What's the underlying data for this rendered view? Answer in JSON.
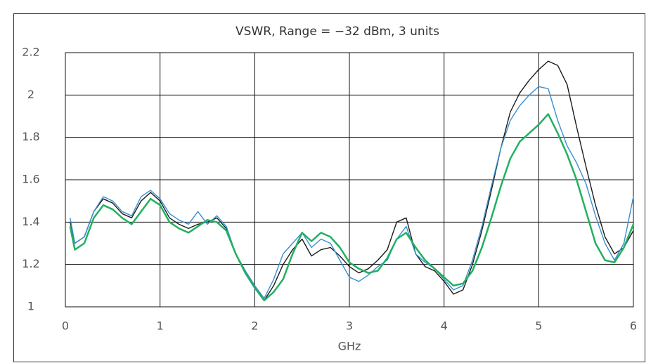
{
  "chart_data": {
    "type": "line",
    "title": "VSWR, Range = −32 dBm, 3 units",
    "xlabel": "GHz",
    "x": [
      0.05,
      0.1,
      0.2,
      0.3,
      0.4,
      0.5,
      0.6,
      0.7,
      0.8,
      0.9,
      1.0,
      1.1,
      1.2,
      1.3,
      1.4,
      1.5,
      1.6,
      1.7,
      1.8,
      1.9,
      2.0,
      2.1,
      2.2,
      2.3,
      2.4,
      2.5,
      2.6,
      2.7,
      2.8,
      2.9,
      3.0,
      3.1,
      3.2,
      3.3,
      3.4,
      3.5,
      3.6,
      3.7,
      3.8,
      3.9,
      4.0,
      4.1,
      4.2,
      4.3,
      4.4,
      4.5,
      4.6,
      4.7,
      4.8,
      4.9,
      5.0,
      5.1,
      5.2,
      5.3,
      5.4,
      5.5,
      5.6,
      5.7,
      5.8,
      5.9,
      6.0
    ],
    "series": [
      {
        "color": "#1a1a1a",
        "values": [
          1.4,
          1.3,
          1.33,
          1.45,
          1.51,
          1.49,
          1.44,
          1.42,
          1.5,
          1.54,
          1.5,
          1.42,
          1.39,
          1.37,
          1.39,
          1.4,
          1.42,
          1.37,
          1.25,
          1.17,
          1.1,
          1.03,
          1.1,
          1.2,
          1.27,
          1.32,
          1.24,
          1.27,
          1.28,
          1.24,
          1.19,
          1.16,
          1.18,
          1.22,
          1.27,
          1.4,
          1.42,
          1.25,
          1.19,
          1.17,
          1.12,
          1.06,
          1.08,
          1.2,
          1.36,
          1.55,
          1.75,
          1.92,
          2.01,
          2.07,
          2.12,
          2.16,
          2.14,
          2.05,
          1.85,
          1.66,
          1.48,
          1.33,
          1.25,
          1.28,
          1.36
        ]
      },
      {
        "color": "#3a8fd0",
        "values": [
          1.42,
          1.3,
          1.33,
          1.45,
          1.52,
          1.5,
          1.45,
          1.43,
          1.52,
          1.55,
          1.51,
          1.44,
          1.41,
          1.39,
          1.45,
          1.39,
          1.43,
          1.38,
          1.25,
          1.17,
          1.1,
          1.04,
          1.13,
          1.25,
          1.3,
          1.35,
          1.28,
          1.32,
          1.3,
          1.22,
          1.14,
          1.12,
          1.15,
          1.19,
          1.22,
          1.32,
          1.38,
          1.25,
          1.21,
          1.18,
          1.13,
          1.08,
          1.1,
          1.22,
          1.38,
          1.57,
          1.75,
          1.88,
          1.95,
          2.0,
          2.04,
          2.03,
          1.88,
          1.76,
          1.68,
          1.58,
          1.43,
          1.3,
          1.22,
          1.3,
          1.52
        ]
      },
      {
        "color": "#22b060",
        "values": [
          1.38,
          1.27,
          1.3,
          1.42,
          1.48,
          1.46,
          1.42,
          1.39,
          1.45,
          1.51,
          1.48,
          1.4,
          1.37,
          1.35,
          1.38,
          1.41,
          1.4,
          1.36,
          1.25,
          1.16,
          1.09,
          1.03,
          1.07,
          1.13,
          1.25,
          1.35,
          1.31,
          1.35,
          1.33,
          1.28,
          1.21,
          1.18,
          1.16,
          1.17,
          1.23,
          1.32,
          1.35,
          1.28,
          1.22,
          1.18,
          1.14,
          1.1,
          1.11,
          1.17,
          1.28,
          1.42,
          1.57,
          1.7,
          1.78,
          1.82,
          1.86,
          1.91,
          1.82,
          1.72,
          1.6,
          1.45,
          1.3,
          1.22,
          1.21,
          1.28,
          1.39
        ]
      }
    ],
    "xlim": [
      0,
      6
    ],
    "xticks": [
      0,
      1,
      2,
      3,
      4,
      5,
      6
    ],
    "ylim": [
      1,
      2.2
    ],
    "yticks": [
      1,
      1.2,
      1.4,
      1.6,
      1.8,
      2,
      2.2
    ],
    "grid": true
  }
}
